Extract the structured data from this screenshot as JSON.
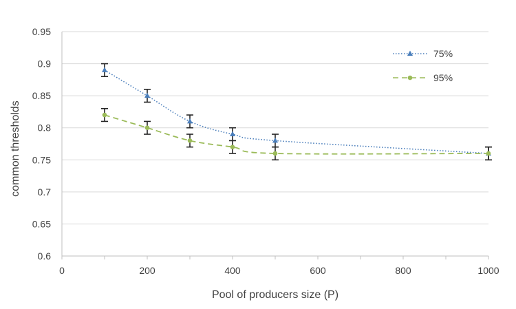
{
  "chart_data": {
    "type": "line",
    "title": "",
    "xlabel": "Pool of producers size (P)",
    "ylabel": "common thresholds",
    "xlim": [
      0,
      1000
    ],
    "ylim": [
      0.6,
      0.95
    ],
    "x_ticks": [
      "0",
      "200",
      "400",
      "600",
      "800",
      "1000"
    ],
    "y_ticks": [
      "0.6",
      "0.65",
      "0.7",
      "0.75",
      "0.8",
      "0.85",
      "0.9",
      "0.95"
    ],
    "grid": "horizontal",
    "legend_position": "top-right",
    "series": [
      {
        "name": "75%",
        "color": "#4a7ebb",
        "marker": "triangle",
        "line_style": "dotted",
        "x": [
          100,
          200,
          300,
          400,
          500,
          1000
        ],
        "y": [
          0.89,
          0.85,
          0.81,
          0.79,
          0.78,
          0.76
        ],
        "error": [
          0.01,
          0.01,
          0.01,
          0.01,
          0.01,
          0.01
        ]
      },
      {
        "name": "95%",
        "color": "#9bbb59",
        "marker": "circle",
        "line_style": "dashed",
        "x": [
          100,
          200,
          300,
          400,
          500,
          1000
        ],
        "y": [
          0.82,
          0.8,
          0.78,
          0.77,
          0.76,
          0.76
        ],
        "error": [
          0.01,
          0.01,
          0.01,
          0.01,
          0.01,
          0.01
        ]
      }
    ]
  }
}
